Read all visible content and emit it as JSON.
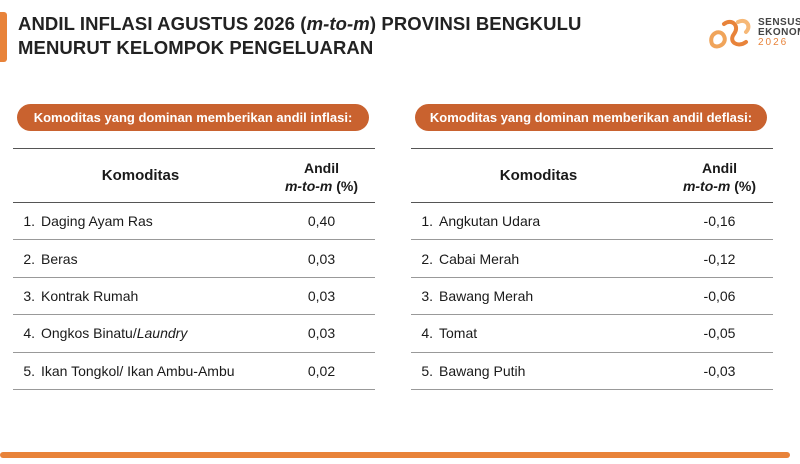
{
  "title": {
    "line1_prefix": "ANDIL INFLASI AGUSTUS 2026 (",
    "line1_italic": "m-to-m",
    "line1_suffix": ") PROVINSI BENGKULU",
    "line2": "MENURUT KELOMPOK PENGELUARAN"
  },
  "logo": {
    "line1": "SENSUS",
    "line2": "EKONOMI",
    "year": "2026"
  },
  "colors": {
    "accent": "#e8833a",
    "pill": "#c9622f"
  },
  "inflation": {
    "heading": "Komoditas yang dominan memberikan andil inflasi:",
    "col_commodity": "Komoditas",
    "col_andil_line1": "Andil",
    "col_andil_italic": "m-to-m",
    "col_andil_unit": " (%)",
    "rows": [
      {
        "no": "1.",
        "name": "Daging Ayam Ras",
        "name_italic": "",
        "value": "0,40"
      },
      {
        "no": "2.",
        "name": "Beras",
        "name_italic": "",
        "value": "0,03"
      },
      {
        "no": "3.",
        "name": "Kontrak Rumah",
        "name_italic": "",
        "value": "0,03"
      },
      {
        "no": "4.",
        "name": "Ongkos Binatu/",
        "name_italic": "Laundry",
        "value": "0,03"
      },
      {
        "no": "5.",
        "name": "Ikan Tongkol/ Ikan Ambu-Ambu",
        "name_italic": "",
        "value": "0,02"
      }
    ]
  },
  "deflation": {
    "heading": "Komoditas yang dominan memberikan andil deflasi:",
    "col_commodity": "Komoditas",
    "col_andil_line1": "Andil",
    "col_andil_italic": "m-to-m",
    "col_andil_unit": " (%)",
    "rows": [
      {
        "no": "1.",
        "name": "Angkutan Udara",
        "name_italic": "",
        "value": "-0,16"
      },
      {
        "no": "2.",
        "name": "Cabai Merah",
        "name_italic": "",
        "value": "-0,12"
      },
      {
        "no": "3.",
        "name": "Bawang Merah",
        "name_italic": "",
        "value": "-0,06"
      },
      {
        "no": "4.",
        "name": "Tomat",
        "name_italic": "",
        "value": "-0,05"
      },
      {
        "no": "5.",
        "name": "Bawang Putih",
        "name_italic": "",
        "value": "-0,03"
      }
    ]
  }
}
